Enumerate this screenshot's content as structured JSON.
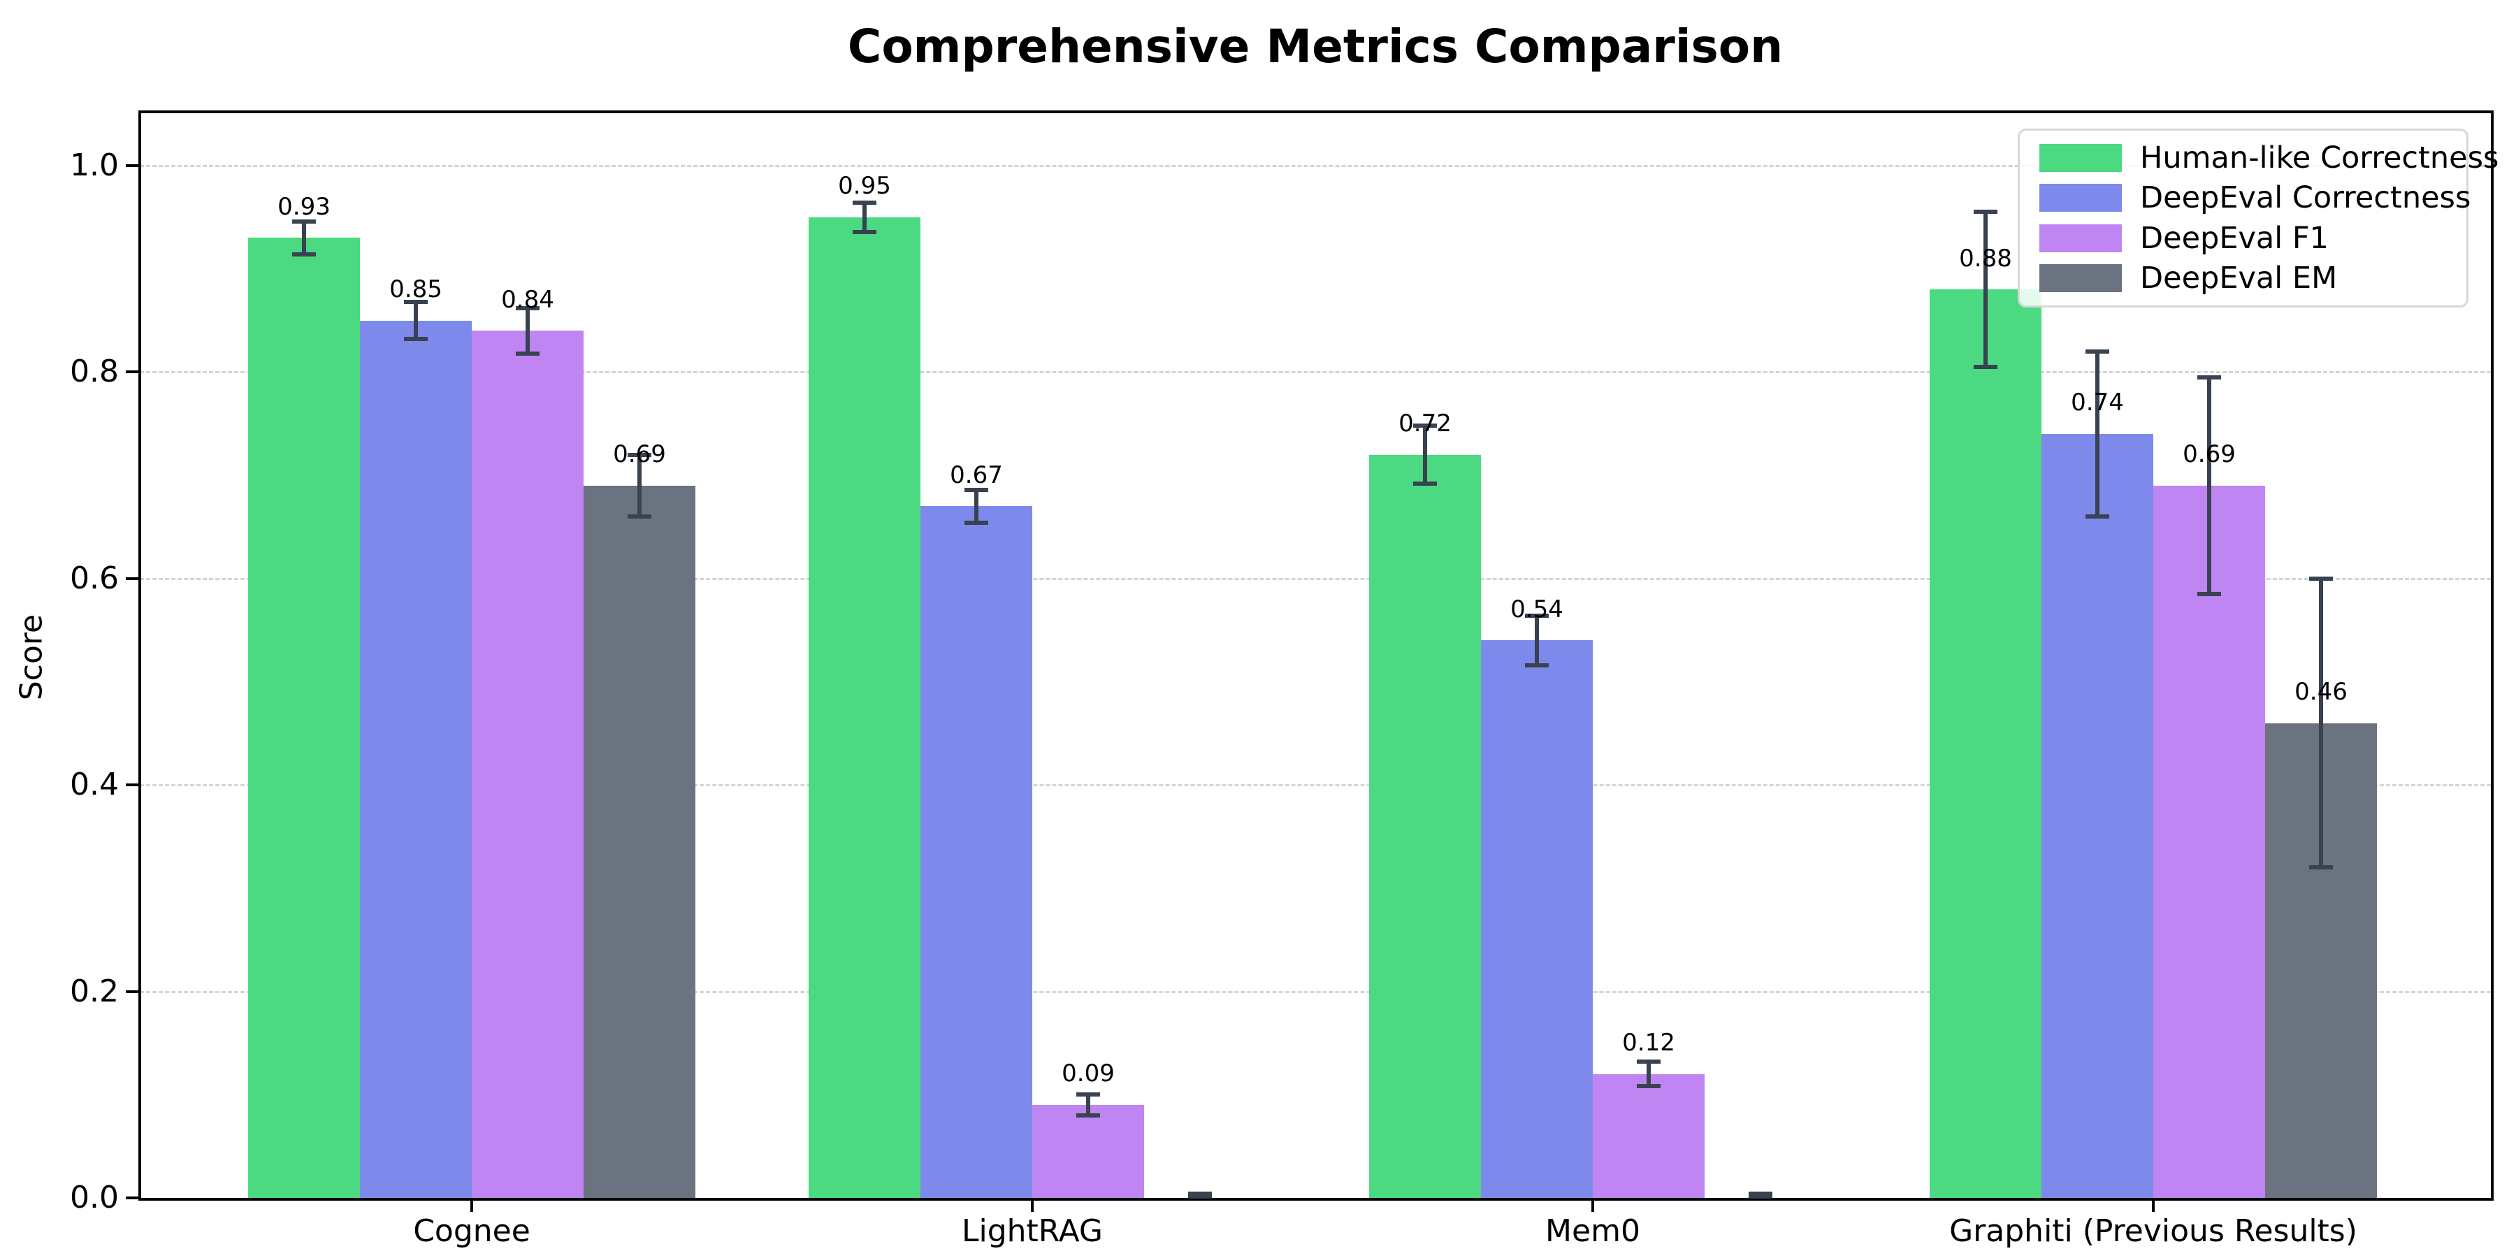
{
  "title": "Comprehensive Metrics Comparison",
  "chart_data": {
    "type": "bar",
    "title": "Comprehensive Metrics Comparison",
    "xlabel": "",
    "ylabel": "Score",
    "ylim": [
      0.0,
      1.05
    ],
    "yticks": [
      "0.0",
      "0.2",
      "0.4",
      "0.6",
      "0.8",
      "1.0"
    ],
    "grid": "horizontal dashed at 0.2 intervals, behind bars",
    "legend_position": "upper right",
    "categories": [
      "Cognee",
      "LightRAG",
      "Mem0",
      "Graphiti (Previous Results)"
    ],
    "series": [
      {
        "name": "Human-like Correctness",
        "color": "#4bd981",
        "values": [
          0.93,
          0.95,
          0.72,
          0.88
        ],
        "errors": [
          0.016,
          0.014,
          0.028,
          0.075
        ],
        "labels": [
          "0.93",
          "0.95",
          "0.72",
          "0.88"
        ]
      },
      {
        "name": "DeepEval Correctness",
        "color": "#7d8aec",
        "values": [
          0.85,
          0.67,
          0.54,
          0.74
        ],
        "errors": [
          0.018,
          0.016,
          0.024,
          0.08
        ],
        "labels": [
          "0.85",
          "0.67",
          "0.54",
          "0.74"
        ]
      },
      {
        "name": "DeepEval F1",
        "color": "#bf85f2",
        "values": [
          0.84,
          0.09,
          0.12,
          0.69
        ],
        "errors": [
          0.022,
          0.01,
          0.012,
          0.105
        ],
        "labels": [
          "0.84",
          "0.09",
          "0.12",
          "0.69"
        ]
      },
      {
        "name": "DeepEval EM",
        "color": "#6b7280",
        "values": [
          0.69,
          0.0,
          0.0,
          0.46
        ],
        "errors": [
          0.03,
          0.004,
          0.004,
          0.14
        ],
        "labels": [
          "0.69",
          null,
          null,
          "0.46"
        ]
      }
    ],
    "style": {
      "error_bar_color": "#384250",
      "grid_color": "#d5d5d5",
      "spine_color": "#000000",
      "background": "#ffffff"
    }
  }
}
